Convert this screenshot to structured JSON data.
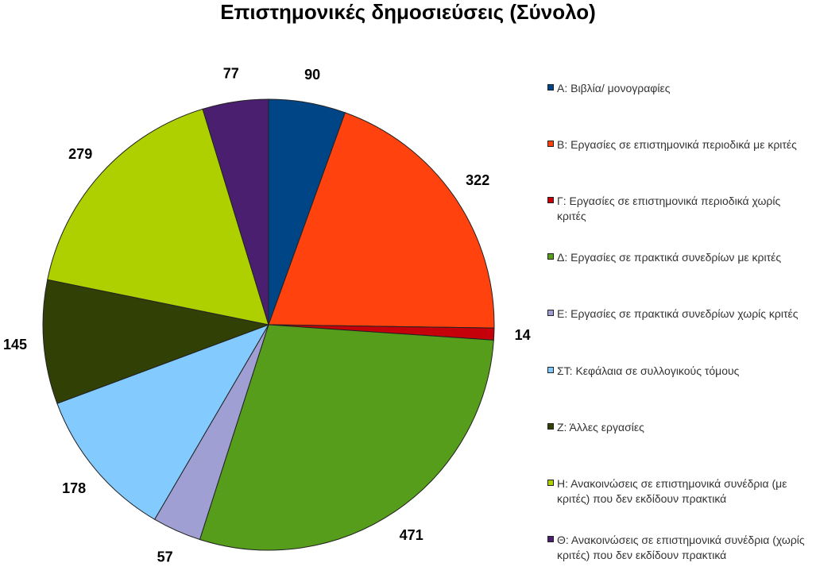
{
  "chart_data": {
    "type": "pie",
    "title": "Επιστημονικές δημοσιεύσεις (Σύνολο)",
    "legend_position": "right",
    "start_angle_deg": 0,
    "direction": "clockwise",
    "categories": [
      "Α: Βιβλία/ μονογραφίες",
      "Β: Εργασίες σε επιστημονικά περιοδικά με κριτές",
      "Γ: Εργασίες σε επιστημονικά περιοδικά χωρίς κριτές",
      "Δ: Εργασίες σε πρακτικά συνεδρίων με κριτές",
      "Ε: Εργασίες σε πρακτικά συνεδρίων χωρίς κριτές",
      "ΣΤ: Κεφάλαια σε συλλογικούς τόμους",
      "Ζ: Άλλες εργασίες",
      "Η: Ανακοινώσεις σε επιστημονικά συνέδρια (με κριτές) που δεν εκδίδουν πρακτικά",
      "Θ: Ανακοινώσεις σε επιστημονικά συνέδρια (χωρίς κριτές) που δεν εκδίδουν πρακτικά"
    ],
    "values": [
      90,
      322,
      14,
      471,
      57,
      178,
      145,
      279,
      77
    ],
    "colors": [
      "#004586",
      "#ff420e",
      "#c5000b",
      "#579d1c",
      "#9f9fd3",
      "#83caff",
      "#314004",
      "#aecf00",
      "#4b1f6f"
    ]
  }
}
